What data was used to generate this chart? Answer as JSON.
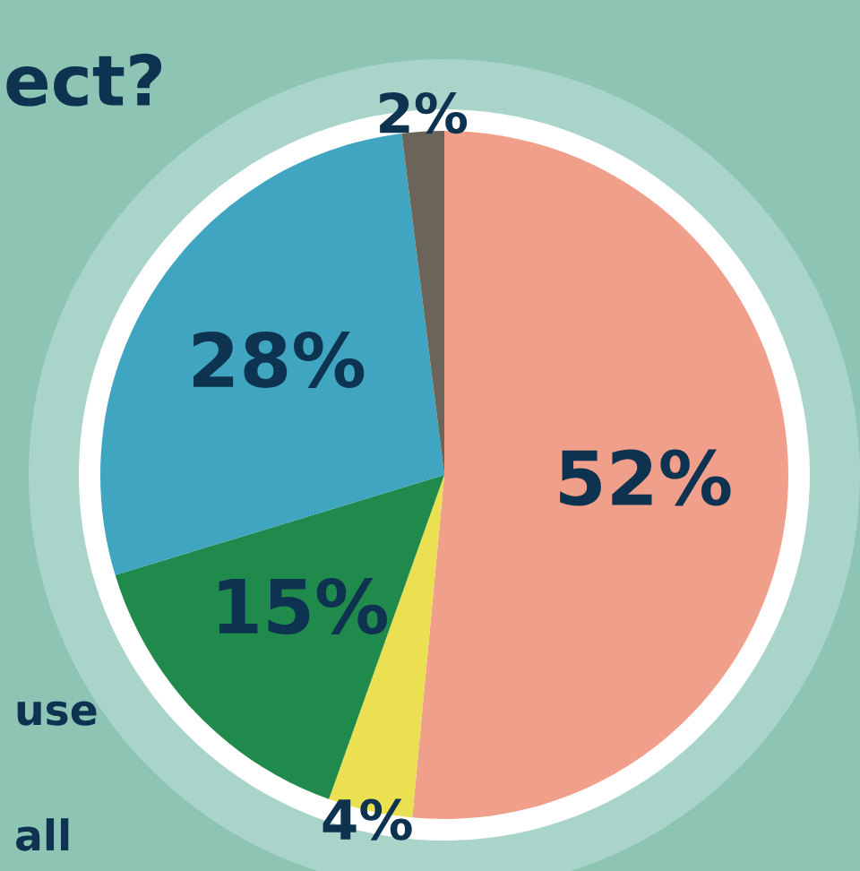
{
  "chart_data": {
    "type": "pie",
    "title": "ect?",
    "categories": [
      null,
      null,
      null,
      null,
      null
    ],
    "values": [
      52,
      4,
      15,
      28,
      2
    ],
    "colors": [
      "#f0a08a",
      "#ebe052",
      "#1f8a4c",
      "#3fa5c0",
      "#6b6458"
    ],
    "value_labels": [
      "52%",
      "4%",
      "15%",
      "28%",
      "2%"
    ],
    "annotations": [
      "use",
      "all"
    ],
    "legend": false
  }
}
